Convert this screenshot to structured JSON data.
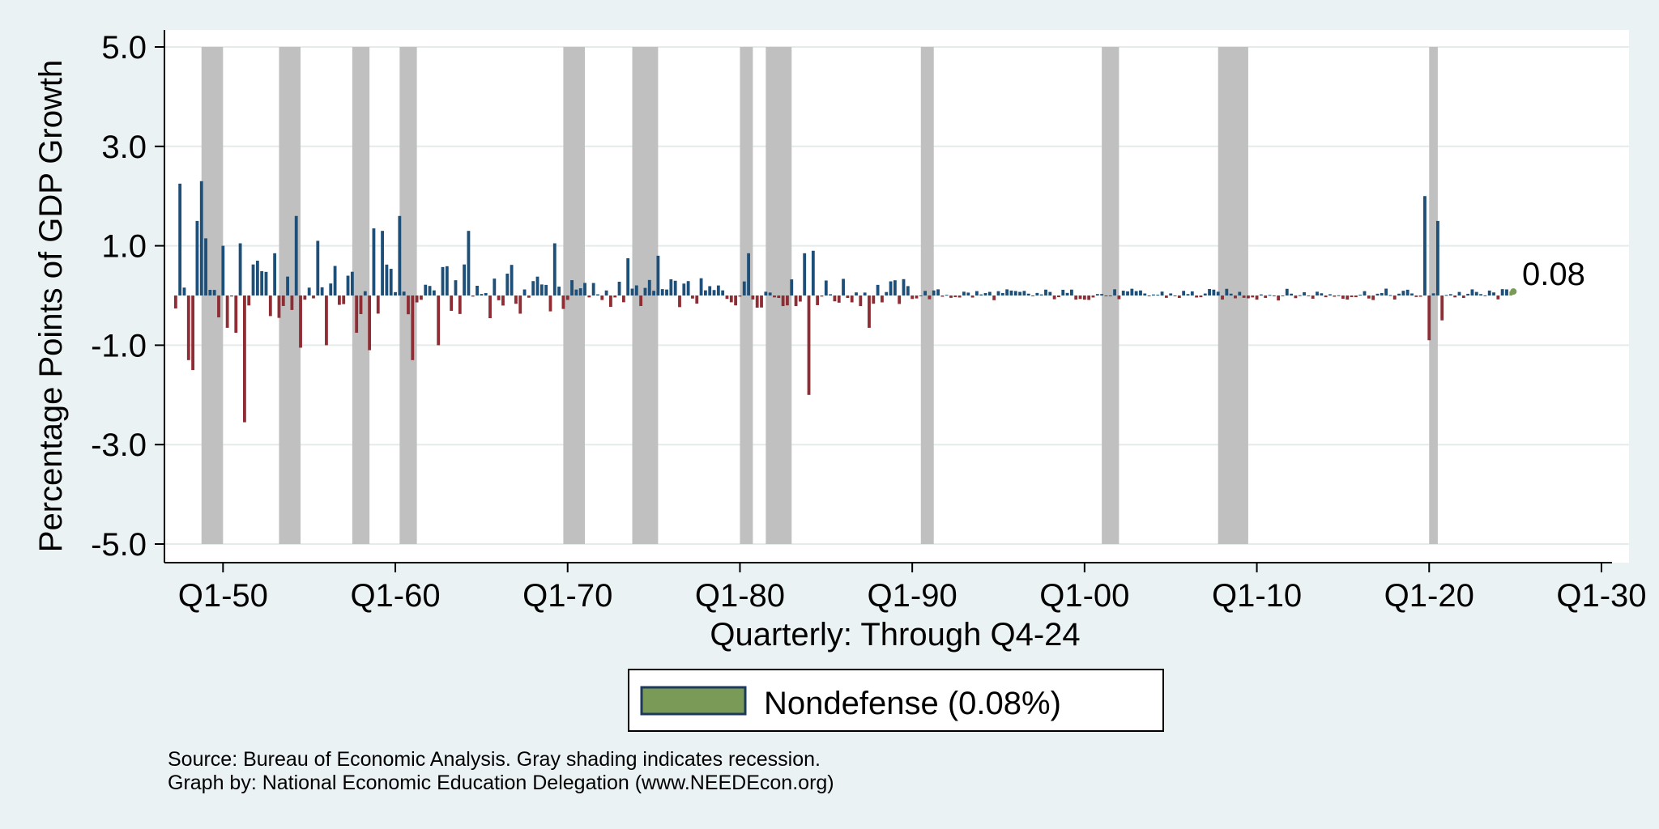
{
  "chart_data": {
    "type": "bar",
    "ylabel": "Percentage Points of GDP Growth",
    "xlabel": "Quarterly: Through Q4-24",
    "yticks": [
      "5.0",
      "3.0",
      "1.0",
      "-1.0",
      "-3.0",
      "-5.0"
    ],
    "ylim": [
      -5.0,
      5.0
    ],
    "xticks": [
      "Q1-50",
      "Q1-60",
      "Q1-70",
      "Q1-80",
      "Q1-90",
      "Q1-00",
      "Q1-10",
      "Q1-20",
      "Q1-30"
    ],
    "xrange_years": [
      1946.6,
      2031.6
    ],
    "last_value_label": "0.08",
    "legend": "Nondefense (0.08%)",
    "grid": true,
    "colors": {
      "positive": "#1d4f78",
      "negative": "#8f2d34",
      "latest": "#7a9a57",
      "recession": "#c0c0c0",
      "background": "#eaf2f3",
      "plot_background": "#ffffff"
    },
    "recessions": [
      [
        1948.75,
        1950.0
      ],
      [
        1953.25,
        1954.5
      ],
      [
        1957.5,
        1958.5
      ],
      [
        1960.25,
        1961.25
      ],
      [
        1969.75,
        1971.0
      ],
      [
        1973.75,
        1975.25
      ],
      [
        1980.0,
        1980.75
      ],
      [
        1981.5,
        1983.0
      ],
      [
        1990.5,
        1991.25
      ],
      [
        2001.0,
        2002.0
      ],
      [
        2007.75,
        2009.5
      ],
      [
        2020.0,
        2020.5
      ]
    ],
    "highlights": [
      {
        "year": 1947.5,
        "value": 2.25
      },
      {
        "year": 1948.0,
        "value": -1.3
      },
      {
        "year": 1948.25,
        "value": -1.5
      },
      {
        "year": 1948.5,
        "value": 1.5
      },
      {
        "year": 1948.75,
        "value": 2.3
      },
      {
        "year": 1949.0,
        "value": 1.15
      },
      {
        "year": 1950.0,
        "value": 1.0
      },
      {
        "year": 1950.25,
        "value": -0.65
      },
      {
        "year": 1950.75,
        "value": -0.75
      },
      {
        "year": 1951.0,
        "value": 1.05
      },
      {
        "year": 1951.25,
        "value": -2.55
      },
      {
        "year": 1952.0,
        "value": 0.7
      },
      {
        "year": 1953.0,
        "value": 0.85
      },
      {
        "year": 1953.25,
        "value": -0.45
      },
      {
        "year": 1954.25,
        "value": 1.6
      },
      {
        "year": 1954.5,
        "value": -1.05
      },
      {
        "year": 1955.5,
        "value": 1.1
      },
      {
        "year": 1956.0,
        "value": -1.0
      },
      {
        "year": 1957.75,
        "value": -0.75
      },
      {
        "year": 1958.5,
        "value": -1.1
      },
      {
        "year": 1958.75,
        "value": 1.35
      },
      {
        "year": 1959.25,
        "value": 1.3
      },
      {
        "year": 1960.25,
        "value": 1.6
      },
      {
        "year": 1961.0,
        "value": -1.3
      },
      {
        "year": 1962.5,
        "value": -1.0
      },
      {
        "year": 1964.25,
        "value": 1.3
      },
      {
        "year": 1969.25,
        "value": 1.05
      },
      {
        "year": 1973.5,
        "value": 0.75
      },
      {
        "year": 1975.25,
        "value": 0.8
      },
      {
        "year": 1980.5,
        "value": 0.85
      },
      {
        "year": 1983.75,
        "value": 0.85
      },
      {
        "year": 1984.0,
        "value": -2.0
      },
      {
        "year": 1984.25,
        "value": 0.9
      },
      {
        "year": 1987.5,
        "value": -0.65
      },
      {
        "year": 2019.75,
        "value": 2.0
      },
      {
        "year": 2020.0,
        "value": -0.9
      },
      {
        "year": 2020.5,
        "value": 1.5
      },
      {
        "year": 2020.75,
        "value": -0.5
      }
    ],
    "latest": {
      "year": 2024.75,
      "value": 0.08
    }
  },
  "footer": {
    "source": "Source: Bureau of Economic Analysis. Gray shading indicates recession.",
    "credit": "Graph by: National Economic Education Delegation (www.NEEDEcon.org)"
  }
}
